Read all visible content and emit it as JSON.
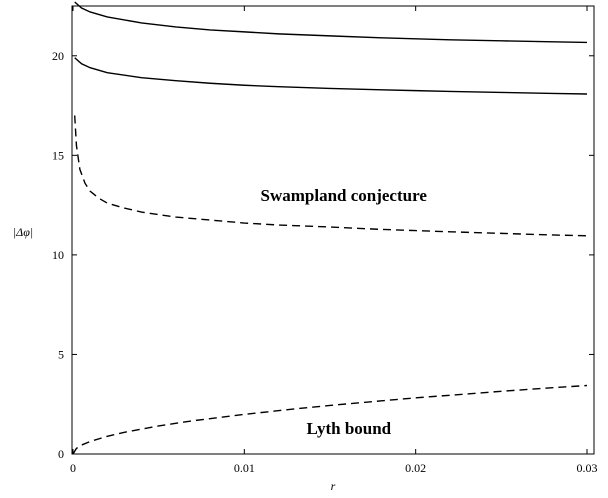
{
  "chart_data": {
    "type": "line",
    "xlabel": "r",
    "ylabel": "|Δφ|",
    "xlim": [
      0,
      0.03
    ],
    "ylim": [
      0,
      22.5
    ],
    "x_ticks": [
      0,
      0.01,
      0.02,
      0.03
    ],
    "x_tick_labels": [
      "0",
      "0.01",
      "0.02",
      "0.03"
    ],
    "y_ticks": [
      0,
      5,
      10,
      15,
      20
    ],
    "y_tick_labels": [
      "0",
      "5",
      "10",
      "15",
      "20"
    ],
    "grid": false,
    "legend": "none",
    "annotations": [
      {
        "text": "Swampland conjecture",
        "x": 0.0158,
        "y": 12.7
      },
      {
        "text": "Lyth bound",
        "x": 0.0161,
        "y": 1.0
      }
    ],
    "series": [
      {
        "style": "solid",
        "x": [
          0.0001,
          0.0005,
          0.001,
          0.002,
          0.004,
          0.006,
          0.008,
          0.01,
          0.012,
          0.015,
          0.018,
          0.02,
          0.022,
          0.025,
          0.028,
          0.03
        ],
        "y": [
          22.7,
          22.4,
          22.2,
          21.95,
          21.65,
          21.45,
          21.3,
          21.2,
          21.1,
          21.0,
          20.9,
          20.85,
          20.8,
          20.75,
          20.7,
          20.67
        ]
      },
      {
        "style": "solid",
        "x": [
          0.0001,
          0.0005,
          0.001,
          0.002,
          0.004,
          0.006,
          0.008,
          0.01,
          0.012,
          0.015,
          0.018,
          0.02,
          0.022,
          0.025,
          0.028,
          0.03
        ],
        "y": [
          19.9,
          19.6,
          19.4,
          19.15,
          18.9,
          18.75,
          18.62,
          18.52,
          18.45,
          18.36,
          18.29,
          18.25,
          18.21,
          18.16,
          18.11,
          18.08
        ]
      },
      {
        "style": "dashed",
        "x": [
          0.0001,
          0.0002,
          0.0004,
          0.0007,
          0.001,
          0.0015,
          0.002,
          0.003,
          0.004,
          0.006,
          0.008,
          0.01,
          0.012,
          0.015,
          0.018,
          0.02,
          0.022,
          0.025,
          0.028,
          0.03
        ],
        "y": [
          17.0,
          15.5,
          14.3,
          13.6,
          13.2,
          12.85,
          12.6,
          12.35,
          12.15,
          11.9,
          11.75,
          11.6,
          11.5,
          11.4,
          11.28,
          11.22,
          11.16,
          11.08,
          11.0,
          10.96
        ]
      },
      {
        "style": "dashed",
        "x": [
          0,
          0.0002,
          0.0005,
          0.001,
          0.002,
          0.003,
          0.005,
          0.007,
          0.01,
          0.013,
          0.015,
          0.018,
          0.02,
          0.022,
          0.025,
          0.028,
          0.03
        ],
        "y": [
          0,
          0.28,
          0.45,
          0.63,
          0.89,
          1.09,
          1.41,
          1.67,
          1.99,
          2.27,
          2.44,
          2.67,
          2.82,
          2.95,
          3.15,
          3.33,
          3.44
        ]
      }
    ]
  }
}
